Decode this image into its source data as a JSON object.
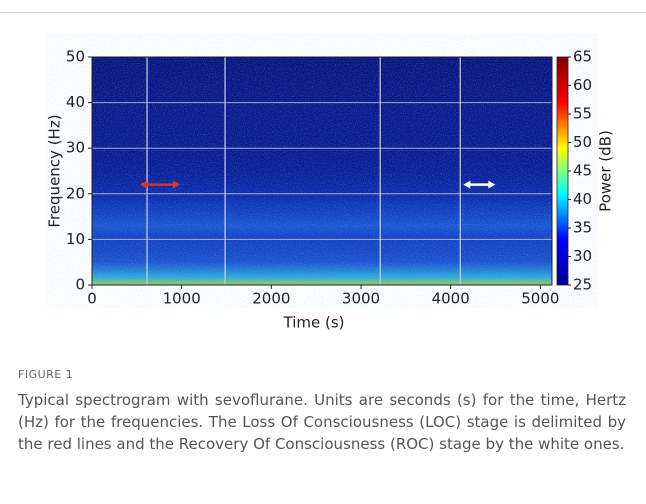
{
  "chart_data": {
    "type": "spectrogram",
    "xlabel": "Time (s)",
    "ylabel": "Frequency (Hz)",
    "xlim": [
      0,
      5130
    ],
    "ylim": [
      0,
      50
    ],
    "xticks": [
      0,
      1000,
      2000,
      3000,
      4000,
      5000
    ],
    "yticks": [
      0,
      10,
      20,
      30,
      40,
      50
    ],
    "grid": true,
    "marker_lines": {
      "x": [
        614,
        1484,
        3214,
        4107
      ],
      "color": "#c8d4dc"
    },
    "arrows": [
      {
        "x": [
          536,
          982
        ],
        "y": 22,
        "color": "#e0302a"
      },
      {
        "x": [
          4141,
          4498
        ],
        "y": 22,
        "color": "#ffffff"
      }
    ],
    "colorbar": {
      "label": "Power (dB)",
      "lim": [
        25,
        65
      ],
      "ticks": [
        25,
        30,
        35,
        40,
        45,
        50,
        55,
        60,
        65
      ],
      "colors": [
        "#00008f",
        "#0000ff",
        "#00ffff",
        "#ffff00",
        "#ff0000",
        "#800000"
      ]
    }
  },
  "figure_label": "FIGURE 1",
  "caption": "Typical spectrogram with sevoflurane. Units are seconds (s) for the time, Hertz (Hz) for the frequencies. The Loss Of Consciousness (LOC) stage is delimited by the red lines and the Recovery Of Consciousness (ROC) stage by the white ones."
}
